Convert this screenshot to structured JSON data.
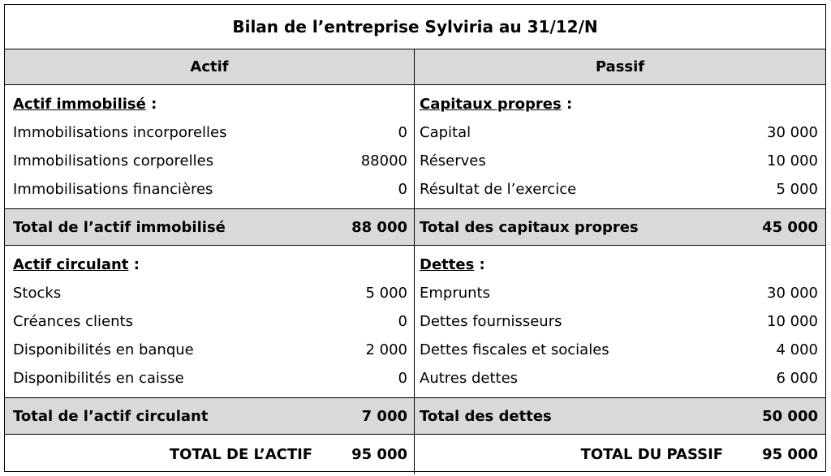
{
  "title": "Bilan de l’entreprise Sylviria au 31/12/N",
  "headers": {
    "actif": "Actif",
    "passif": "Passif"
  },
  "actif_immobilise": {
    "heading": "Actif immobilisé",
    "colon": " :",
    "rows": [
      {
        "label": "Immobilisations incorporelles",
        "value": "0"
      },
      {
        "label": "Immobilisations corporelles",
        "value": "88000"
      },
      {
        "label": "Immobilisations financières",
        "value": "0"
      }
    ],
    "total_label": "Total de l’actif immobilisé",
    "total_value": "88 000"
  },
  "capitaux_propres": {
    "heading": "Capitaux propres",
    "colon": " :",
    "rows": [
      {
        "label": "Capital",
        "value": "30 000"
      },
      {
        "label": "Réserves",
        "value": "10 000"
      },
      {
        "label": "Résultat de l’exercice",
        "value": "5 000"
      }
    ],
    "total_label": "Total des capitaux propres",
    "total_value": "45 000"
  },
  "actif_circulant": {
    "heading": "Actif circulant",
    "colon": " :",
    "rows": [
      {
        "label": "Stocks",
        "value": "5 000"
      },
      {
        "label": "Créances clients",
        "value": "0"
      },
      {
        "label": "Disponibilités en banque",
        "value": "2 000"
      },
      {
        "label": "Disponibilités en caisse",
        "value": "0"
      }
    ],
    "total_label": "Total de l’actif circulant",
    "total_value": "7 000"
  },
  "dettes": {
    "heading": "Dettes",
    "colon": " :",
    "rows": [
      {
        "label": "Emprunts",
        "value": "30 000"
      },
      {
        "label": "Dettes fournisseurs",
        "value": "10 000"
      },
      {
        "label": "Dettes fiscales et sociales",
        "value": "4 000"
      },
      {
        "label": "Autres dettes",
        "value": "6 000"
      }
    ],
    "total_label": "Total des dettes",
    "total_value": "50 000"
  },
  "grand_totals": {
    "actif_label": "TOTAL DE L’ACTIF",
    "actif_value": "95 000",
    "passif_label": "TOTAL DU PASSIF",
    "passif_value": "95 000"
  },
  "colors": {
    "shade": "#d9d9d9",
    "border": "#000000"
  }
}
